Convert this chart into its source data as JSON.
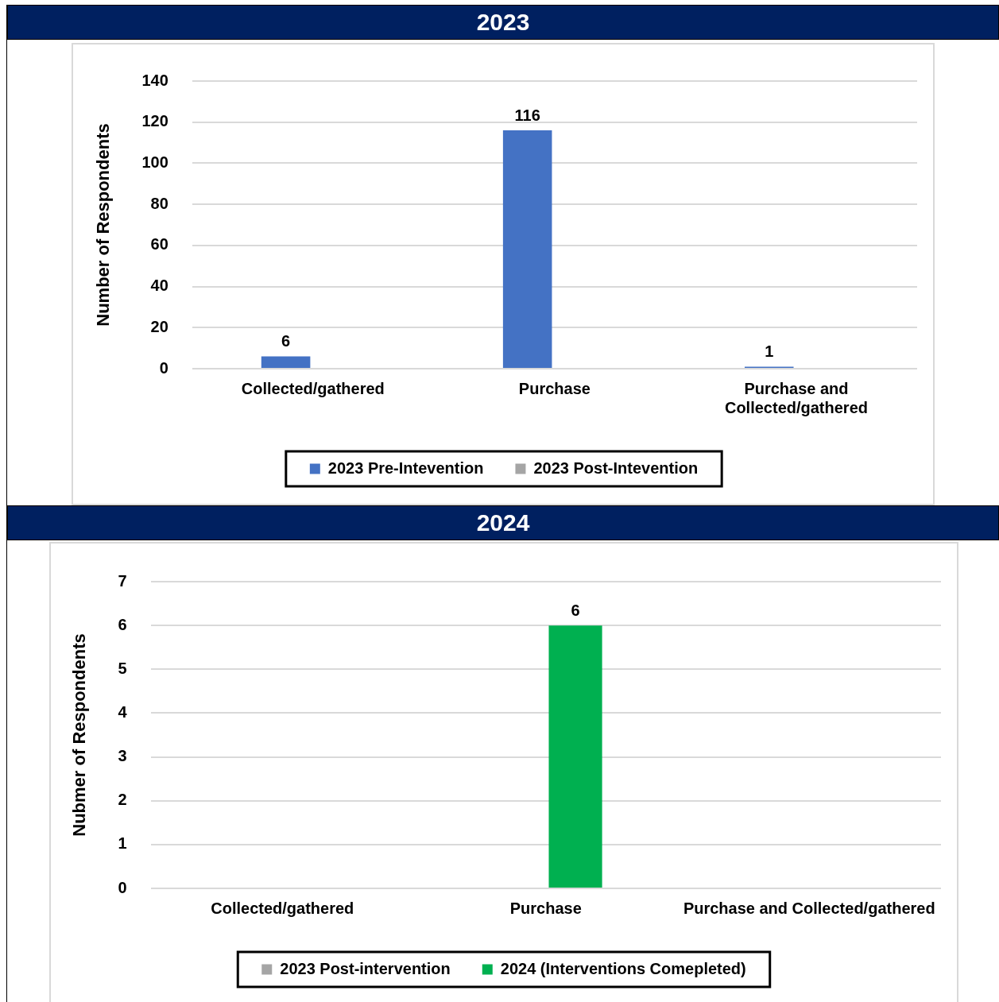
{
  "chart_data": [
    {
      "type": "bar",
      "title": "2023",
      "ylabel": "Number of Respondents",
      "categories": [
        "Collected/gathered",
        "Purchase",
        "Purchase and Collected/gathered"
      ],
      "series": [
        {
          "name": "2023 Pre-Intevention",
          "color": "#4472c4",
          "values": [
            6,
            116,
            1
          ]
        },
        {
          "name": "2023 Post-Intevention",
          "color": "#a5a5a5",
          "values": [
            null,
            null,
            null
          ]
        }
      ],
      "ylim": [
        0,
        140
      ],
      "yticks": [
        0,
        20,
        40,
        60,
        80,
        100,
        120,
        140
      ],
      "grid": "y",
      "legend": "bottom",
      "data_labels": true
    },
    {
      "type": "bar",
      "title": "2024",
      "ylabel": "Nubmer of Respondents",
      "categories": [
        "Collected/gathered",
        "Purchase",
        "Purchase and Collected/gathered"
      ],
      "series": [
        {
          "name": "2023 Post-intervention",
          "color": "#a5a5a5",
          "values": [
            null,
            null,
            null
          ]
        },
        {
          "name": "2024 (Interventions Comepleted)",
          "color": "#00b050",
          "values": [
            null,
            6,
            null
          ]
        }
      ],
      "ylim": [
        0,
        7
      ],
      "yticks": [
        0,
        1,
        2,
        3,
        4,
        5,
        6,
        7
      ],
      "grid": "y",
      "legend": "bottom",
      "data_labels": true
    }
  ]
}
